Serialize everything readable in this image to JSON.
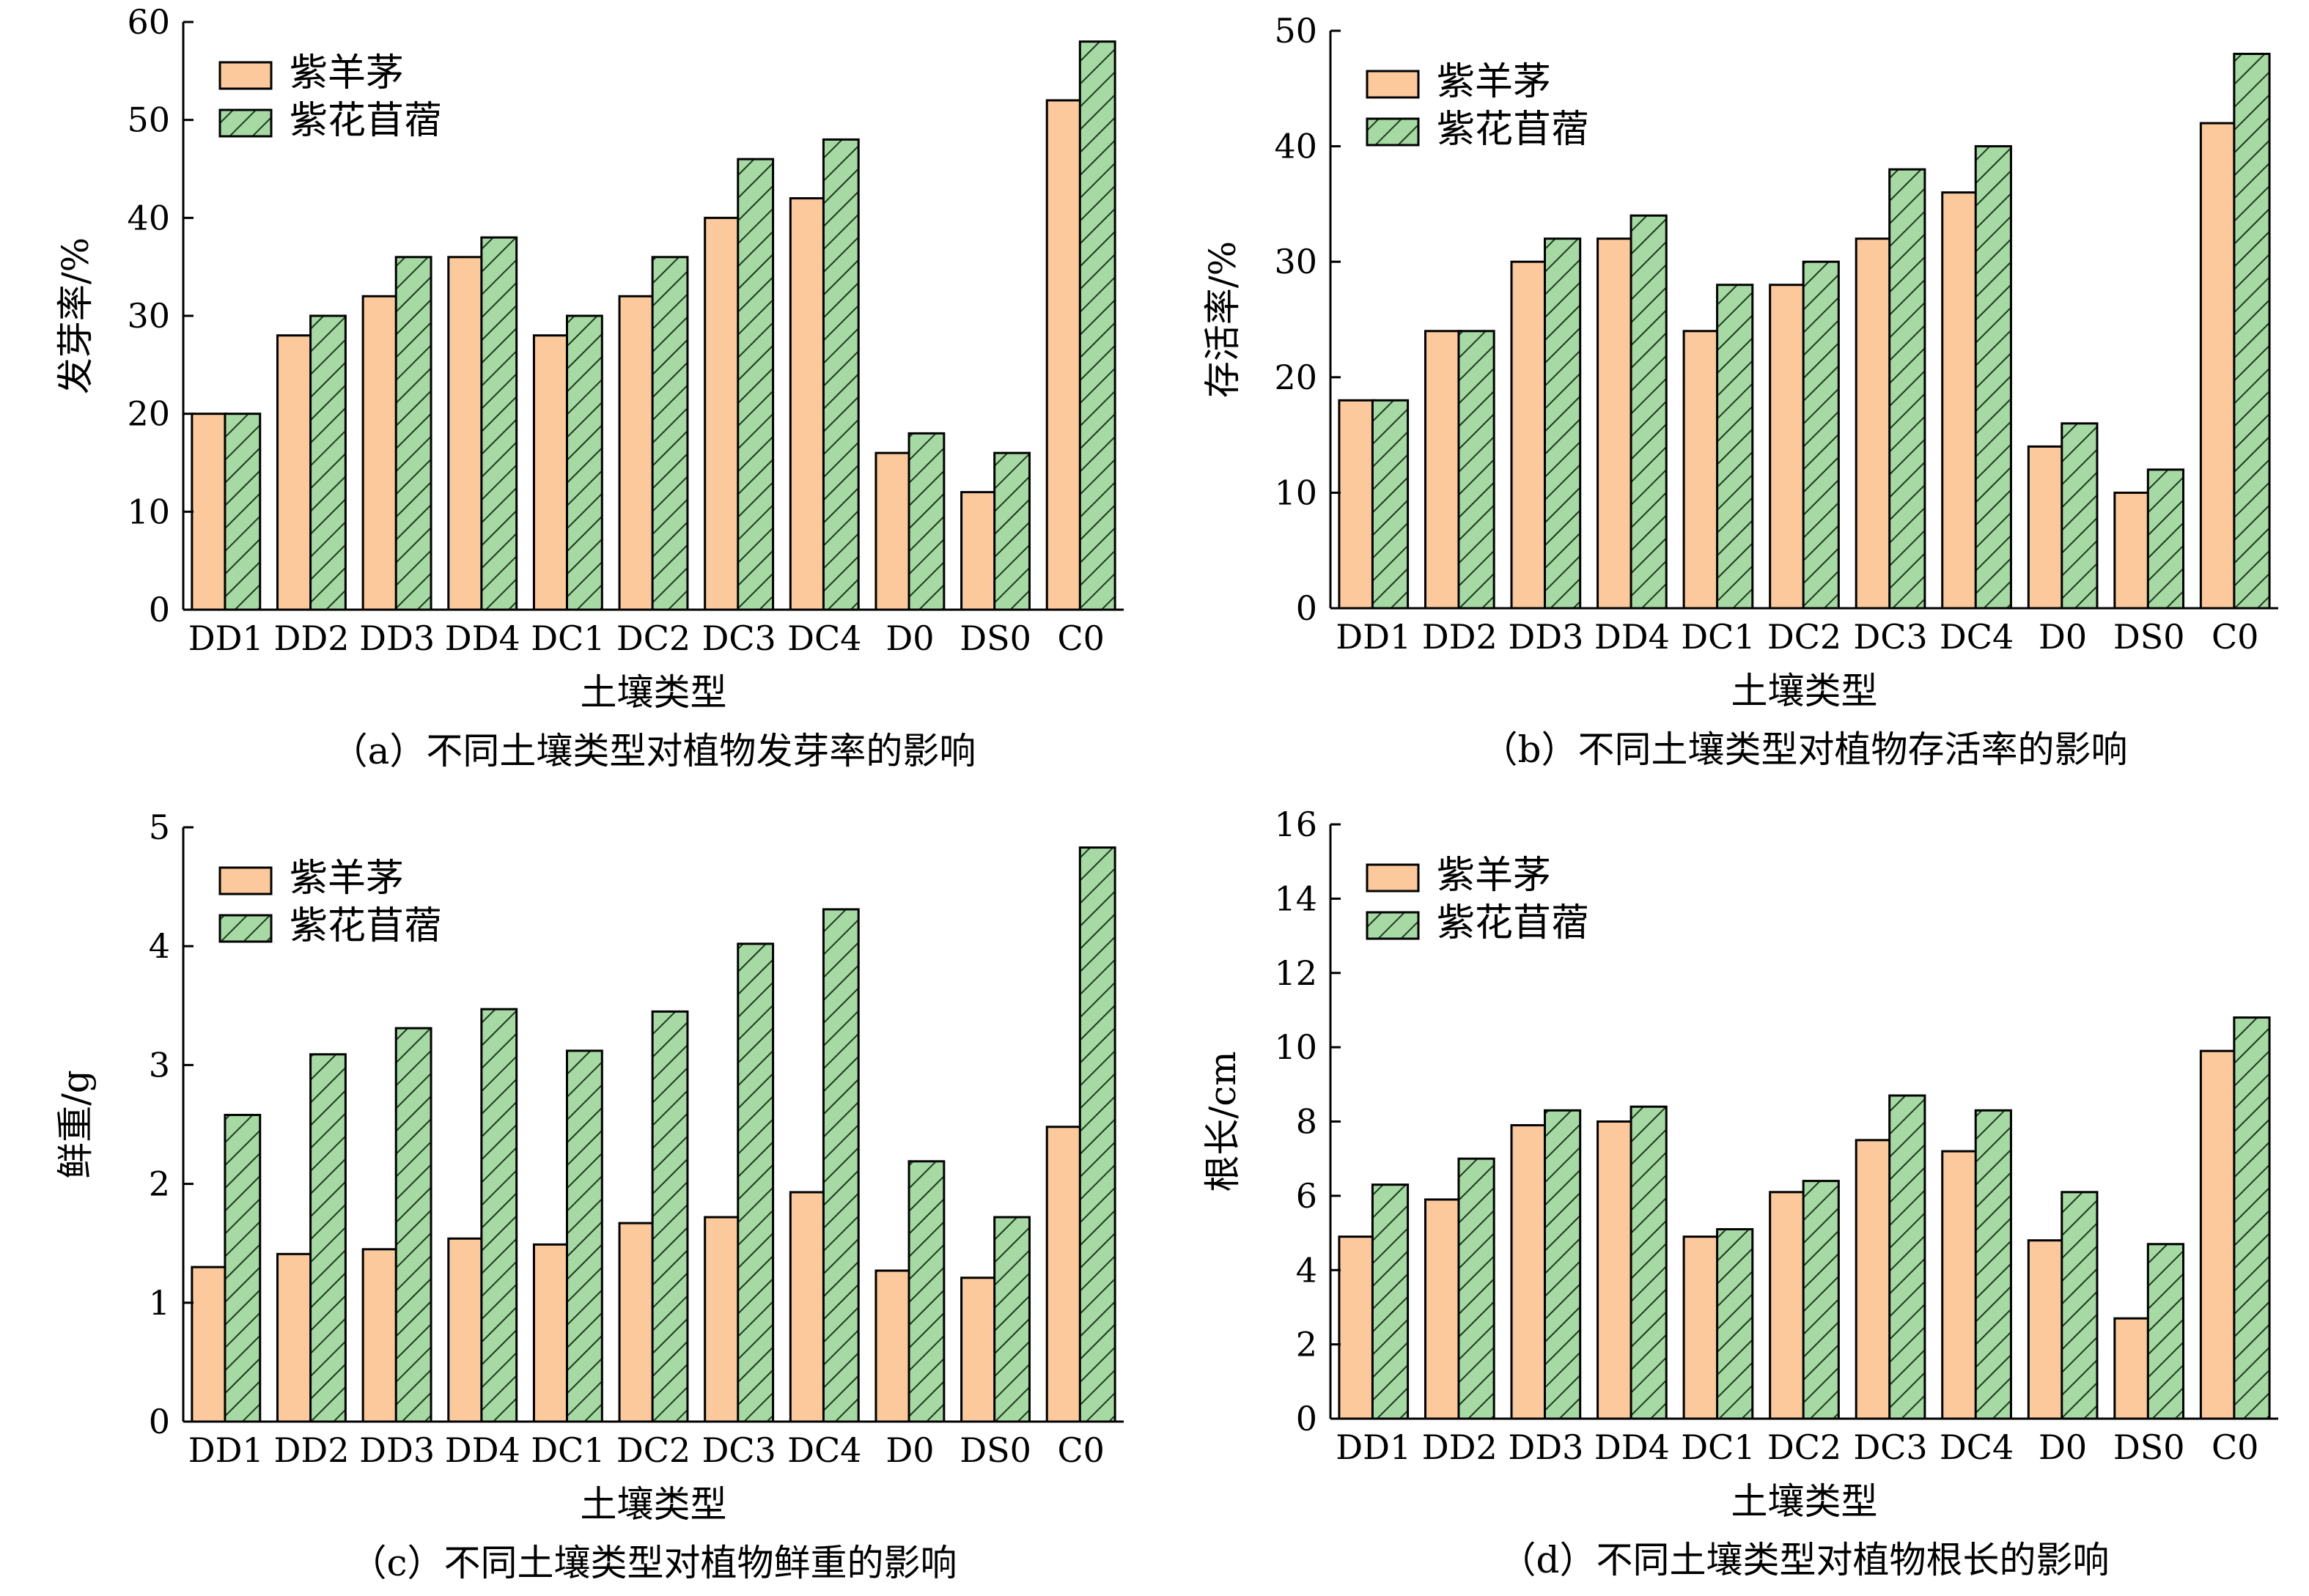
{
  "legend": {
    "series1": "紫羊茅",
    "series2": "紫花苜蓿"
  },
  "colors": {
    "series1_fill": "#fbc99c",
    "series2_fill": "#a6d9a4",
    "hatch": "#1d3b1d",
    "axis": "#000000"
  },
  "chart_data": [
    {
      "id": "a",
      "type": "bar",
      "caption": "（a）不同土壤类型对植物发芽率的影响",
      "xlabel": "土壤类型",
      "ylabel": "发芽率/%",
      "ylim": [
        0,
        60
      ],
      "yticks": [
        0,
        10,
        20,
        30,
        40,
        50,
        60
      ],
      "categories": [
        "DD1",
        "DD2",
        "DD3",
        "DD4",
        "DC1",
        "DC2",
        "DC3",
        "DC4",
        "D0",
        "DS0",
        "C0"
      ],
      "series": [
        {
          "name": "紫羊茅",
          "values": [
            20,
            28,
            32,
            36,
            28,
            32,
            40,
            42,
            16,
            12,
            52
          ]
        },
        {
          "name": "紫花苜蓿",
          "values": [
            20,
            30,
            36,
            38,
            30,
            36,
            46,
            48,
            18,
            16,
            58
          ]
        }
      ],
      "legend_position": "top-left"
    },
    {
      "id": "b",
      "type": "bar",
      "caption": "（b）不同土壤类型对植物存活率的影响",
      "xlabel": "土壤类型",
      "ylabel": "存活率/%",
      "ylim": [
        0,
        50
      ],
      "yticks": [
        0,
        10,
        20,
        30,
        40,
        50
      ],
      "categories": [
        "DD1",
        "DD2",
        "DD3",
        "DD4",
        "DC1",
        "DC2",
        "DC3",
        "DC4",
        "D0",
        "DS0",
        "C0"
      ],
      "series": [
        {
          "name": "紫羊茅",
          "values": [
            18,
            24,
            30,
            32,
            24,
            28,
            32,
            36,
            14,
            10,
            42
          ]
        },
        {
          "name": "紫花苜蓿",
          "values": [
            18,
            24,
            32,
            34,
            28,
            30,
            38,
            40,
            16,
            12,
            48
          ]
        }
      ],
      "legend_position": "top-left"
    },
    {
      "id": "c",
      "type": "bar",
      "caption": "（c）不同土壤类型对植物鲜重的影响",
      "xlabel": "土壤类型",
      "ylabel": "鲜重/g",
      "ylim": [
        0,
        5
      ],
      "yticks": [
        0,
        1,
        2,
        3,
        4,
        5
      ],
      "categories": [
        "DD1",
        "DD2",
        "DD3",
        "DD4",
        "DC1",
        "DC2",
        "DC3",
        "DC4",
        "D0",
        "DS0",
        "C0"
      ],
      "series": [
        {
          "name": "紫羊茅",
          "values": [
            1.3,
            1.41,
            1.45,
            1.54,
            1.49,
            1.67,
            1.72,
            1.93,
            1.27,
            1.21,
            2.48
          ]
        },
        {
          "name": "紫花苜蓿",
          "values": [
            2.58,
            3.09,
            3.31,
            3.47,
            3.12,
            3.45,
            4.02,
            4.31,
            2.19,
            1.72,
            4.83
          ]
        }
      ],
      "legend_position": "top-left"
    },
    {
      "id": "d",
      "type": "bar",
      "caption": "（d）不同土壤类型对植物根长的影响",
      "xlabel": "土壤类型",
      "ylabel": "根长/cm",
      "ylim": [
        0,
        16
      ],
      "yticks": [
        0,
        2,
        4,
        6,
        8,
        10,
        12,
        14,
        16
      ],
      "categories": [
        "DD1",
        "DD2",
        "DD3",
        "DD4",
        "DC1",
        "DC2",
        "DC3",
        "DC4",
        "D0",
        "DS0",
        "C0"
      ],
      "series": [
        {
          "name": "紫羊茅",
          "values": [
            4.9,
            5.9,
            7.9,
            8.0,
            4.9,
            6.1,
            7.5,
            7.2,
            4.8,
            2.7,
            9.9
          ]
        },
        {
          "name": "紫花苜蓿",
          "values": [
            6.3,
            7.0,
            8.3,
            8.4,
            5.1,
            6.4,
            8.7,
            8.3,
            6.1,
            4.7,
            10.8
          ]
        }
      ],
      "legend_position": "top-left"
    }
  ]
}
